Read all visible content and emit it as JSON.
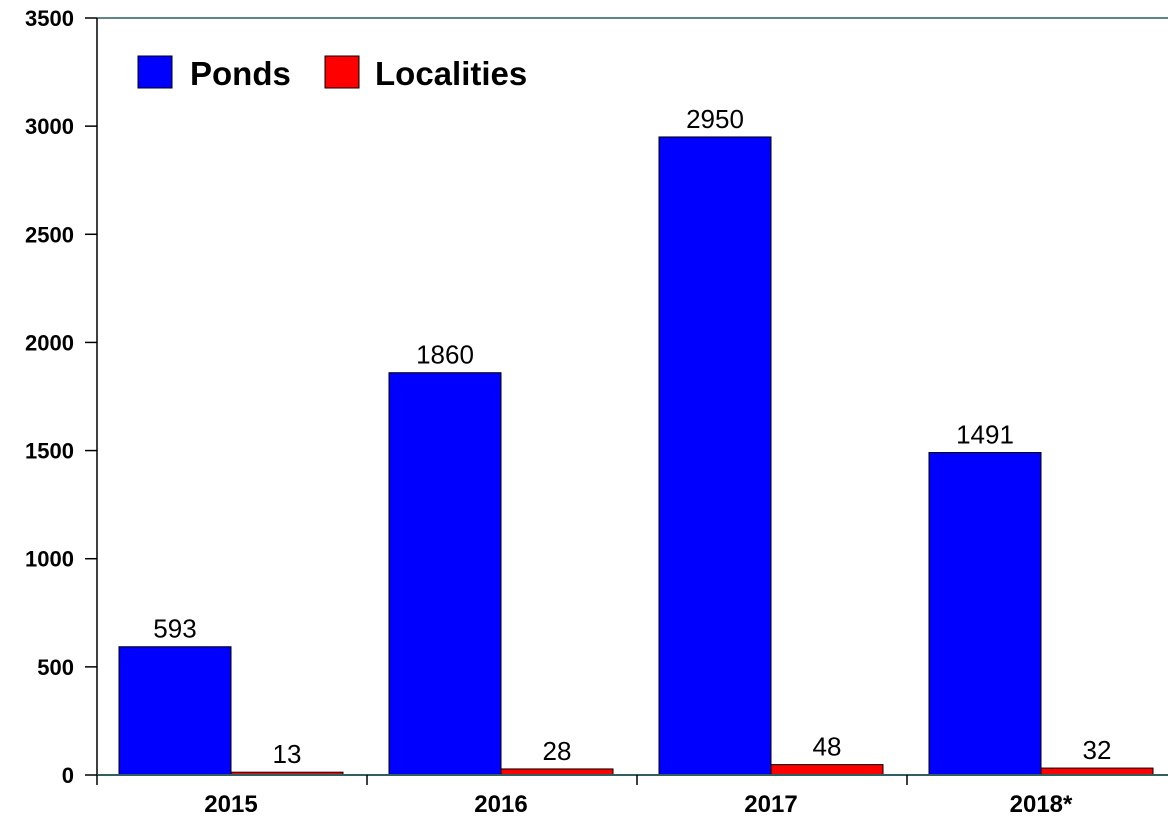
{
  "chart_data": {
    "type": "bar",
    "categories": [
      "2015",
      "2016",
      "2017",
      "2018*"
    ],
    "series": [
      {
        "name": "Ponds",
        "values": [
          593,
          1860,
          2950,
          1491
        ],
        "color": "#0000ff"
      },
      {
        "name": "Localities",
        "values": [
          13,
          28,
          48,
          32
        ],
        "color": "#ff0000"
      }
    ],
    "ylim": [
      0,
      3500
    ],
    "yticks": [
      0,
      500,
      1000,
      1500,
      2000,
      2500,
      3000,
      3500
    ],
    "grid": false,
    "legend_position": "top-left",
    "data_labels": true,
    "title": "",
    "xlabel": "",
    "ylabel": ""
  }
}
